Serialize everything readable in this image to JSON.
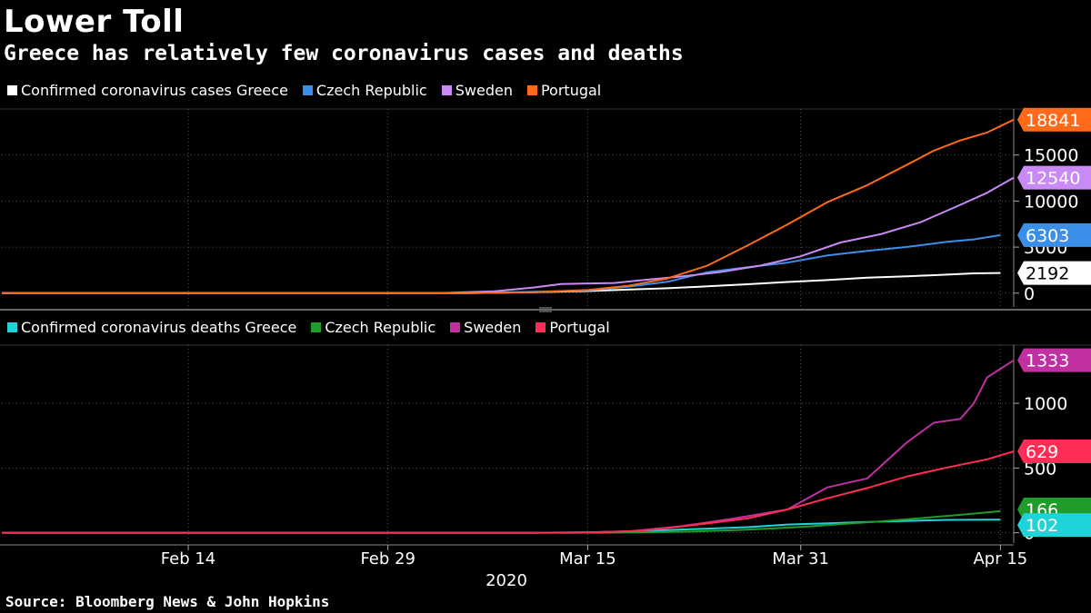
{
  "title": "Lower Toll",
  "subtitle": "Greece has relatively few coronavirus cases and deaths",
  "source": "Source: Bloomberg News & John Hopkins",
  "colors": {
    "greece_cases": "#ffffff",
    "czech_cases": "#3b8fe8",
    "sweden_cases": "#c98af5",
    "portugal_cases": "#ff6a1a",
    "greece_deaths": "#1fd4d9",
    "czech_deaths": "#1f9c2a",
    "sweden_deaths": "#c030a0",
    "portugal_deaths": "#ff2d55"
  },
  "chart_data": [
    {
      "type": "line",
      "title": "Confirmed coronavirus cases",
      "x_labels": [
        "Feb 14",
        "Feb 29",
        "Mar 15",
        "Mar 31",
        "Apr 15"
      ],
      "x_label_days": [
        14,
        29,
        44,
        60,
        75
      ],
      "x_year_label": "2020",
      "x_range_days": [
        0,
        76
      ],
      "y_ticks": [
        0,
        5000,
        10000,
        15000
      ],
      "y_tick_labels": [
        "0",
        "5000",
        "10000",
        "15000"
      ],
      "ylim": [
        -1500,
        20000
      ],
      "series": [
        {
          "name": "Confirmed coronavirus cases Greece",
          "legend": "Confirmed coronavirus cases Greece",
          "color_key": "greece_cases",
          "end_label": "2192",
          "points": [
            [
              0,
              0
            ],
            [
              26,
              0
            ],
            [
              35,
              3
            ],
            [
              40,
              99
            ],
            [
              44,
              228
            ],
            [
              47,
              387
            ],
            [
              50,
              530
            ],
            [
              53,
              743
            ],
            [
              56,
              966
            ],
            [
              59,
              1212
            ],
            [
              62,
              1415
            ],
            [
              65,
              1673
            ],
            [
              68,
              1832
            ],
            [
              71,
              2011
            ],
            [
              73,
              2145
            ],
            [
              75,
              2192
            ]
          ]
        },
        {
          "name": "Czech Republic",
          "legend": "Czech Republic",
          "color_key": "czech_cases",
          "end_label": "6303",
          "points": [
            [
              0,
              0
            ],
            [
              30,
              0
            ],
            [
              35,
              5
            ],
            [
              40,
              150
            ],
            [
              44,
              298
            ],
            [
              47,
              694
            ],
            [
              50,
              1236
            ],
            [
              53,
              2279
            ],
            [
              56,
              2817
            ],
            [
              59,
              3308
            ],
            [
              62,
              4091
            ],
            [
              65,
              4587
            ],
            [
              68,
              5017
            ],
            [
              71,
              5569
            ],
            [
              73,
              5836
            ],
            [
              75,
              6303
            ]
          ]
        },
        {
          "name": "Sweden",
          "legend": "Sweden",
          "color_key": "sweden_cases",
          "end_label": "12540",
          "points": [
            [
              0,
              0
            ],
            [
              26,
              0
            ],
            [
              33,
              15
            ],
            [
              37,
              200
            ],
            [
              40,
              620
            ],
            [
              42,
              1000
            ],
            [
              46,
              1100
            ],
            [
              48,
              1400
            ],
            [
              51,
              1800
            ],
            [
              54,
              2300
            ],
            [
              57,
              3000
            ],
            [
              60,
              4000
            ],
            [
              63,
              5500
            ],
            [
              66,
              6400
            ],
            [
              69,
              7700
            ],
            [
              72,
              9600
            ],
            [
              74,
              10900
            ],
            [
              76,
              12540
            ]
          ]
        },
        {
          "name": "Portugal",
          "legend": "Portugal",
          "color_key": "portugal_cases",
          "end_label": "18841",
          "points": [
            [
              0,
              0
            ],
            [
              31,
              0
            ],
            [
              35,
              10
            ],
            [
              40,
              112
            ],
            [
              44,
              331
            ],
            [
              47,
              785
            ],
            [
              50,
              1600
            ],
            [
              53,
              2995
            ],
            [
              56,
              5170
            ],
            [
              59,
              7443
            ],
            [
              62,
              9886
            ],
            [
              65,
              11730
            ],
            [
              68,
              13956
            ],
            [
              70,
              15472
            ],
            [
              72,
              16585
            ],
            [
              74,
              17448
            ],
            [
              76,
              18841
            ]
          ]
        }
      ]
    },
    {
      "type": "line",
      "title": "Confirmed coronavirus deaths",
      "y_ticks": [
        0,
        500,
        1000
      ],
      "y_tick_labels": [
        "0",
        "500",
        "1000"
      ],
      "ylim": [
        -80,
        1450
      ],
      "series": [
        {
          "name": "Confirmed coronavirus deaths Greece",
          "legend": "Confirmed coronavirus deaths Greece",
          "color_key": "greece_deaths",
          "end_label": "102",
          "points": [
            [
              0,
              0
            ],
            [
              40,
              0
            ],
            [
              44,
              3
            ],
            [
              48,
              13
            ],
            [
              52,
              28
            ],
            [
              56,
              43
            ],
            [
              59,
              63
            ],
            [
              62,
              73
            ],
            [
              65,
              83
            ],
            [
              68,
              91
            ],
            [
              71,
              99
            ],
            [
              75,
              102
            ]
          ]
        },
        {
          "name": "Czech Republic",
          "legend": "Czech Republic",
          "color_key": "czech_deaths",
          "end_label": "166",
          "points": [
            [
              0,
              0
            ],
            [
              45,
              0
            ],
            [
              48,
              3
            ],
            [
              52,
              9
            ],
            [
              56,
              23
            ],
            [
              60,
              44
            ],
            [
              63,
              67
            ],
            [
              66,
              88
            ],
            [
              69,
              112
            ],
            [
              72,
              138
            ],
            [
              75,
              166
            ]
          ]
        },
        {
          "name": "Sweden",
          "legend": "Sweden",
          "color_key": "sweden_deaths",
          "end_label": "1333",
          "points": [
            [
              0,
              0
            ],
            [
              43,
              0
            ],
            [
              47,
              10
            ],
            [
              51,
              50
            ],
            [
              55,
              110
            ],
            [
              59,
              180
            ],
            [
              62,
              350
            ],
            [
              65,
              420
            ],
            [
              68,
              700
            ],
            [
              70,
              850
            ],
            [
              72,
              880
            ],
            [
              73,
              1000
            ],
            [
              74,
              1200
            ],
            [
              76,
              1333
            ]
          ]
        },
        {
          "name": "Portugal",
          "legend": "Portugal",
          "color_key": "portugal_deaths",
          "end_label": "629",
          "points": [
            [
              0,
              0
            ],
            [
              40,
              0
            ],
            [
              44,
              2
            ],
            [
              48,
              14
            ],
            [
              52,
              60
            ],
            [
              56,
              110
            ],
            [
              59,
              180
            ],
            [
              62,
              266
            ],
            [
              65,
              345
            ],
            [
              68,
              435
            ],
            [
              71,
              504
            ],
            [
              74,
              567
            ],
            [
              76,
              629
            ]
          ]
        }
      ]
    }
  ]
}
